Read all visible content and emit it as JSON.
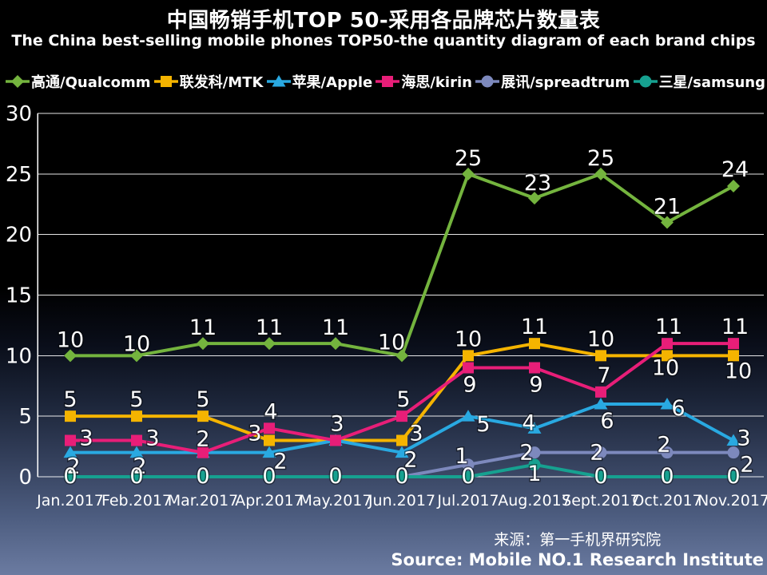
{
  "title": "中国畅销手机TOP 50-采用各品牌芯片数量表",
  "subtitle": "The China best-selling mobile phones TOP50-the quantity diagram of each brand chips",
  "source": {
    "line1": "来源：第一手机界研究院",
    "line2": "Source: Mobile NO.1 Research Institute"
  },
  "chart_data": {
    "type": "line",
    "title": "中国畅销手机TOP 50-采用各品牌芯片数量表",
    "subtitle": "The China best-selling mobile phones TOP50-the quantity diagram of each brand chips",
    "categories": [
      "Jan.2017",
      "Feb.2017",
      "Mar.2017",
      "Apr.2017",
      "May.2017",
      "Jun.2017",
      "Jul.2017",
      "Aug.2017",
      "Sept.2017",
      "Oct.2017",
      "Nov.2017"
    ],
    "ylim": [
      0,
      30
    ],
    "yticks": [
      0,
      5,
      10,
      15,
      20,
      25,
      30
    ],
    "grid": true,
    "legend_position": "top",
    "background": "black-to-slate-gradient",
    "series": [
      {
        "key": "qualcomm",
        "name": "高通/Qualcomm",
        "marker": "diamond",
        "color": "#74b43e",
        "values": [
          10,
          10,
          11,
          11,
          11,
          10,
          25,
          23,
          25,
          21,
          24
        ]
      },
      {
        "key": "mtk",
        "name": "联发科/MTK",
        "marker": "square",
        "color": "#f5b400",
        "values": [
          5,
          5,
          5,
          3,
          3,
          3,
          10,
          11,
          10,
          10,
          10
        ]
      },
      {
        "key": "apple",
        "name": "苹果/Apple",
        "marker": "triangle",
        "color": "#29a9e1",
        "values": [
          2,
          2,
          2,
          2,
          3,
          2,
          5,
          4,
          6,
          6,
          3
        ]
      },
      {
        "key": "kirin",
        "name": "海思/kirin",
        "marker": "square",
        "color": "#e81e78",
        "values": [
          3,
          3,
          2,
          4,
          3,
          5,
          9,
          9,
          7,
          11,
          11
        ]
      },
      {
        "key": "spreadtrum",
        "name": "展讯/spreadtrum",
        "marker": "circle",
        "color": "#7d89bd",
        "values": [
          0,
          0,
          0,
          0,
          0,
          0,
          1,
          2,
          2,
          2,
          2
        ]
      },
      {
        "key": "samsung",
        "name": "三星/samsung",
        "marker": "circle",
        "color": "#16a190",
        "values": [
          0,
          0,
          0,
          0,
          0,
          0,
          0,
          1,
          0,
          0,
          0
        ]
      }
    ]
  }
}
